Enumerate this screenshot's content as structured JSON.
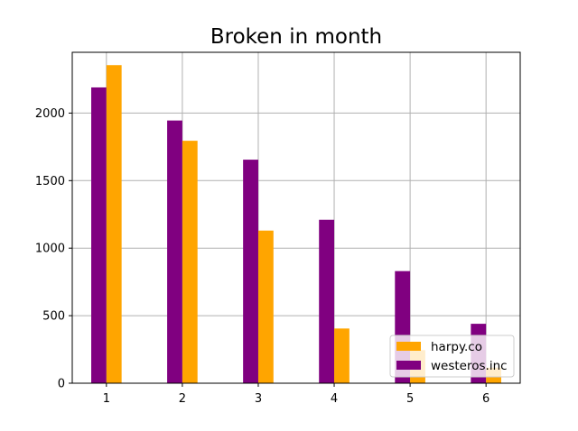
{
  "chart_data": {
    "type": "bar",
    "title": "Broken in month",
    "xlabel": "",
    "ylabel": "",
    "categories": [
      "1",
      "2",
      "3",
      "4",
      "5",
      "6"
    ],
    "series": [
      {
        "name": "westeros.inc",
        "color": "#800080",
        "values": [
          2190,
          1945,
          1655,
          1210,
          830,
          440
        ]
      },
      {
        "name": "harpy.co",
        "color": "#ffa500",
        "values": [
          2355,
          1795,
          1130,
          405,
          245,
          115
        ]
      }
    ],
    "ylim": [
      0,
      2450
    ],
    "yticks": [
      0,
      500,
      1000,
      1500,
      2000
    ],
    "xlim": [
      0.55,
      6.45
    ],
    "grid": true,
    "legend": {
      "position": "lower-right",
      "order": [
        "harpy.co",
        "westeros.inc"
      ]
    }
  }
}
